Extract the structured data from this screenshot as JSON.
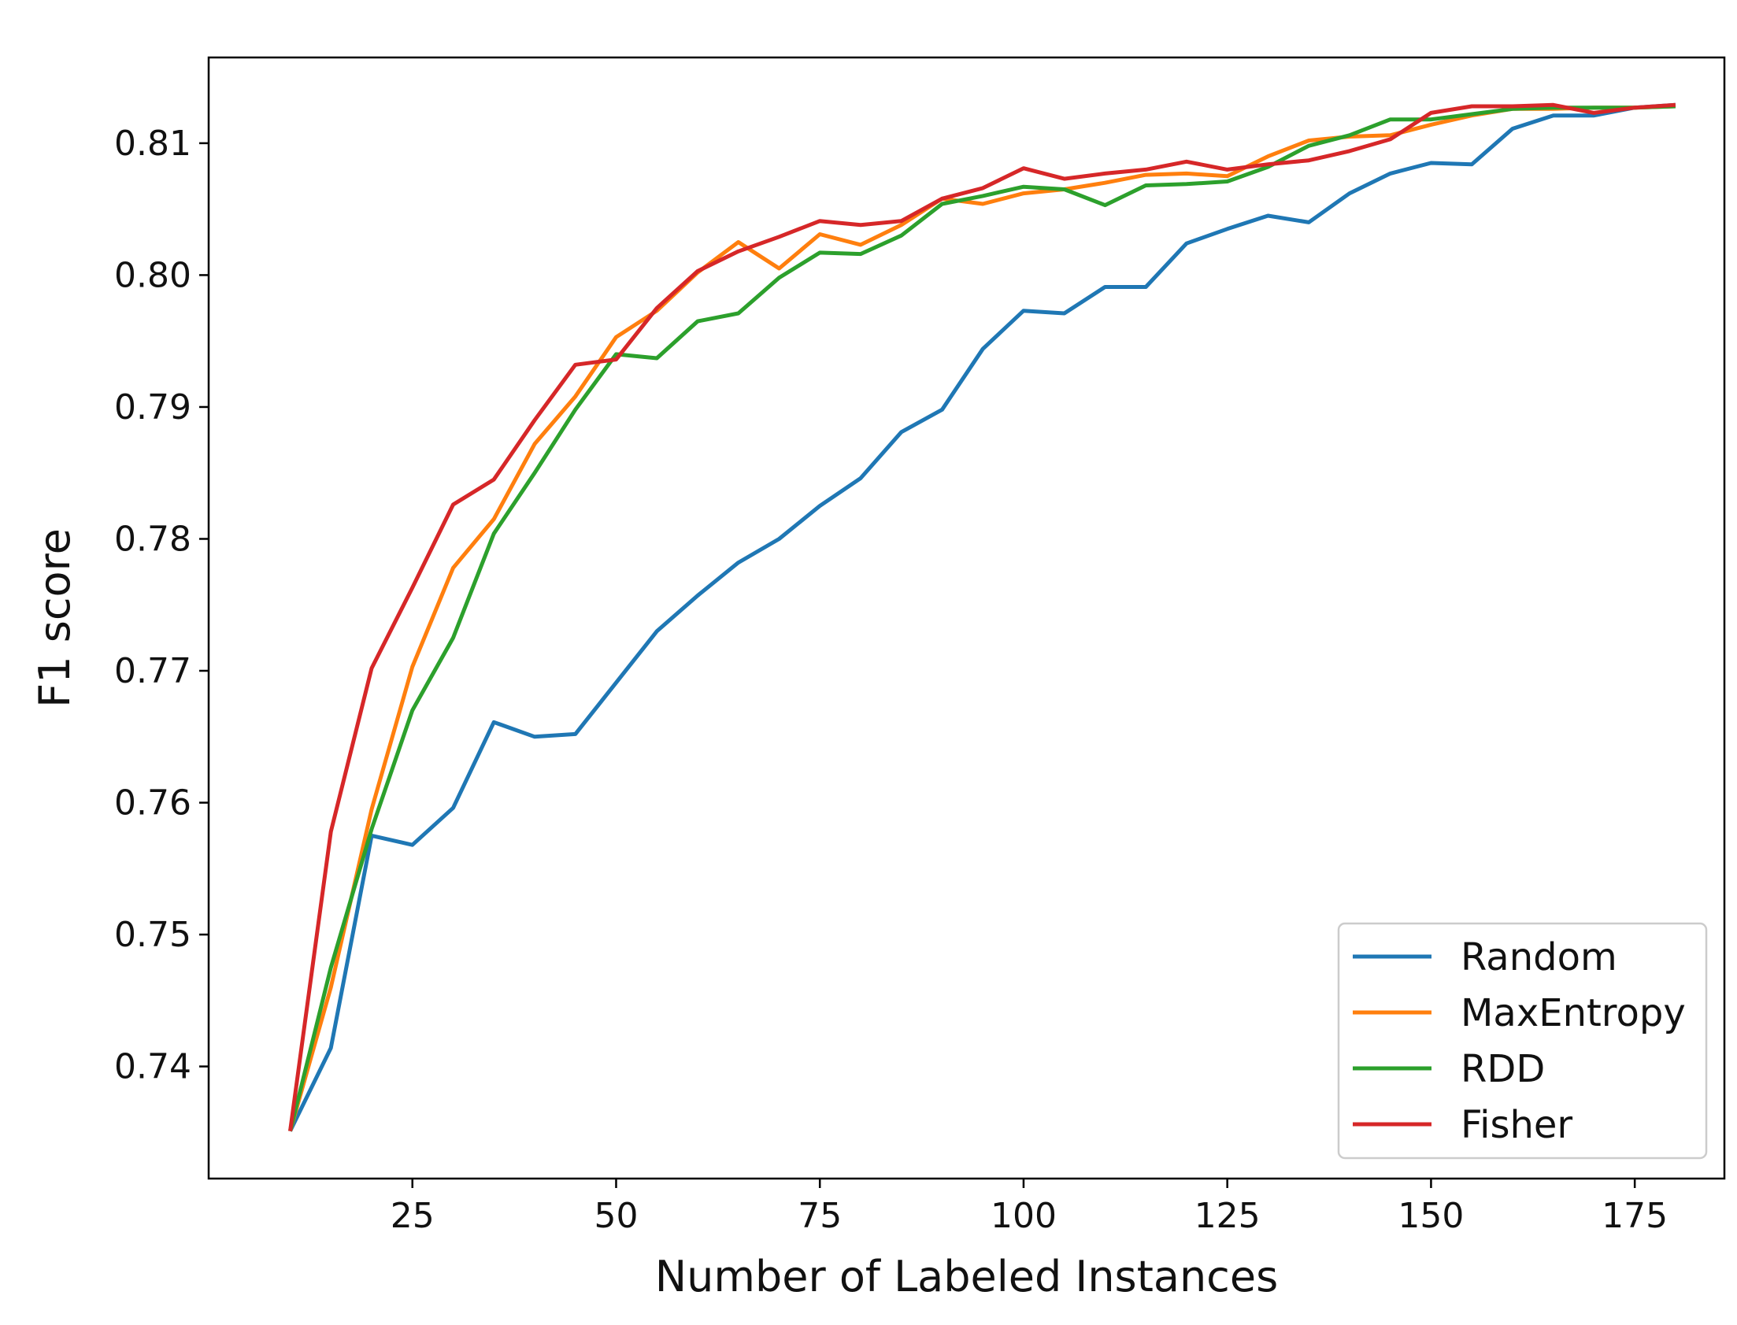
{
  "chart_data": {
    "type": "line",
    "title": "",
    "xlabel": "Number of Labeled Instances",
    "ylabel": "F1 score",
    "xlim": [
      0,
      186
    ],
    "ylim": [
      0.7315,
      0.8165
    ],
    "xticks": [
      25,
      50,
      75,
      100,
      125,
      150,
      175
    ],
    "xtick_labels": [
      "25",
      "50",
      "75",
      "100",
      "125",
      "150",
      "175"
    ],
    "yticks": [
      0.74,
      0.75,
      0.76,
      0.77,
      0.78,
      0.79,
      0.8,
      0.81
    ],
    "ytick_labels": [
      "0.74",
      "0.75",
      "0.76",
      "0.77",
      "0.78",
      "0.79",
      "0.80",
      "0.81"
    ],
    "grid": false,
    "legend_position": "lower-right",
    "x": [
      10,
      15,
      20,
      25,
      30,
      35,
      40,
      45,
      50,
      55,
      60,
      65,
      70,
      75,
      80,
      85,
      90,
      95,
      100,
      105,
      110,
      115,
      120,
      125,
      130,
      135,
      140,
      145,
      150,
      155,
      160,
      165,
      170,
      175,
      180
    ],
    "series": [
      {
        "name": "Random",
        "color": "#1f77b4",
        "values": [
          0.7351,
          0.7414,
          0.7575,
          0.7568,
          0.7596,
          0.7661,
          0.765,
          0.7652,
          0.7691,
          0.773,
          0.7757,
          0.7782,
          0.78,
          0.7825,
          0.7846,
          0.7881,
          0.7898,
          0.7944,
          0.7973,
          0.7971,
          0.7991,
          0.7991,
          0.8024,
          0.8035,
          0.8045,
          0.804,
          0.8062,
          0.8077,
          0.8085,
          0.8084,
          0.8111,
          0.8121,
          0.8121,
          0.8127,
          0.8129
        ]
      },
      {
        "name": "MaxEntropy",
        "color": "#ff7f0e",
        "values": [
          0.7351,
          0.746,
          0.7595,
          0.7703,
          0.7778,
          0.7815,
          0.7872,
          0.7908,
          0.7953,
          0.7973,
          0.8002,
          0.8025,
          0.8005,
          0.8031,
          0.8023,
          0.8038,
          0.8058,
          0.8054,
          0.8062,
          0.8065,
          0.807,
          0.8076,
          0.8077,
          0.8075,
          0.809,
          0.8102,
          0.8105,
          0.8106,
          0.8114,
          0.8121,
          0.8126,
          0.8126,
          0.8127,
          0.8127,
          0.8128
        ]
      },
      {
        "name": "RDD",
        "color": "#2ca02c",
        "values": [
          0.7351,
          0.7475,
          0.758,
          0.767,
          0.7725,
          0.7804,
          0.785,
          0.7898,
          0.794,
          0.7937,
          0.7965,
          0.7971,
          0.7998,
          0.8017,
          0.8016,
          0.803,
          0.8054,
          0.806,
          0.8067,
          0.8065,
          0.8053,
          0.8068,
          0.8069,
          0.8071,
          0.8082,
          0.8098,
          0.8106,
          0.8118,
          0.8118,
          0.8122,
          0.8126,
          0.8127,
          0.8127,
          0.8127,
          0.8128
        ]
      },
      {
        "name": "Fisher",
        "color": "#d62728",
        "values": [
          0.7351,
          0.7578,
          0.7702,
          0.7763,
          0.7826,
          0.7845,
          0.789,
          0.7932,
          0.7936,
          0.7975,
          0.8003,
          0.8018,
          0.8029,
          0.8041,
          0.8038,
          0.8041,
          0.8058,
          0.8066,
          0.8081,
          0.8073,
          0.8077,
          0.808,
          0.8086,
          0.808,
          0.8084,
          0.8087,
          0.8094,
          0.8103,
          0.8123,
          0.8128,
          0.8128,
          0.8129,
          0.8123,
          0.8127,
          0.8129
        ]
      }
    ]
  }
}
